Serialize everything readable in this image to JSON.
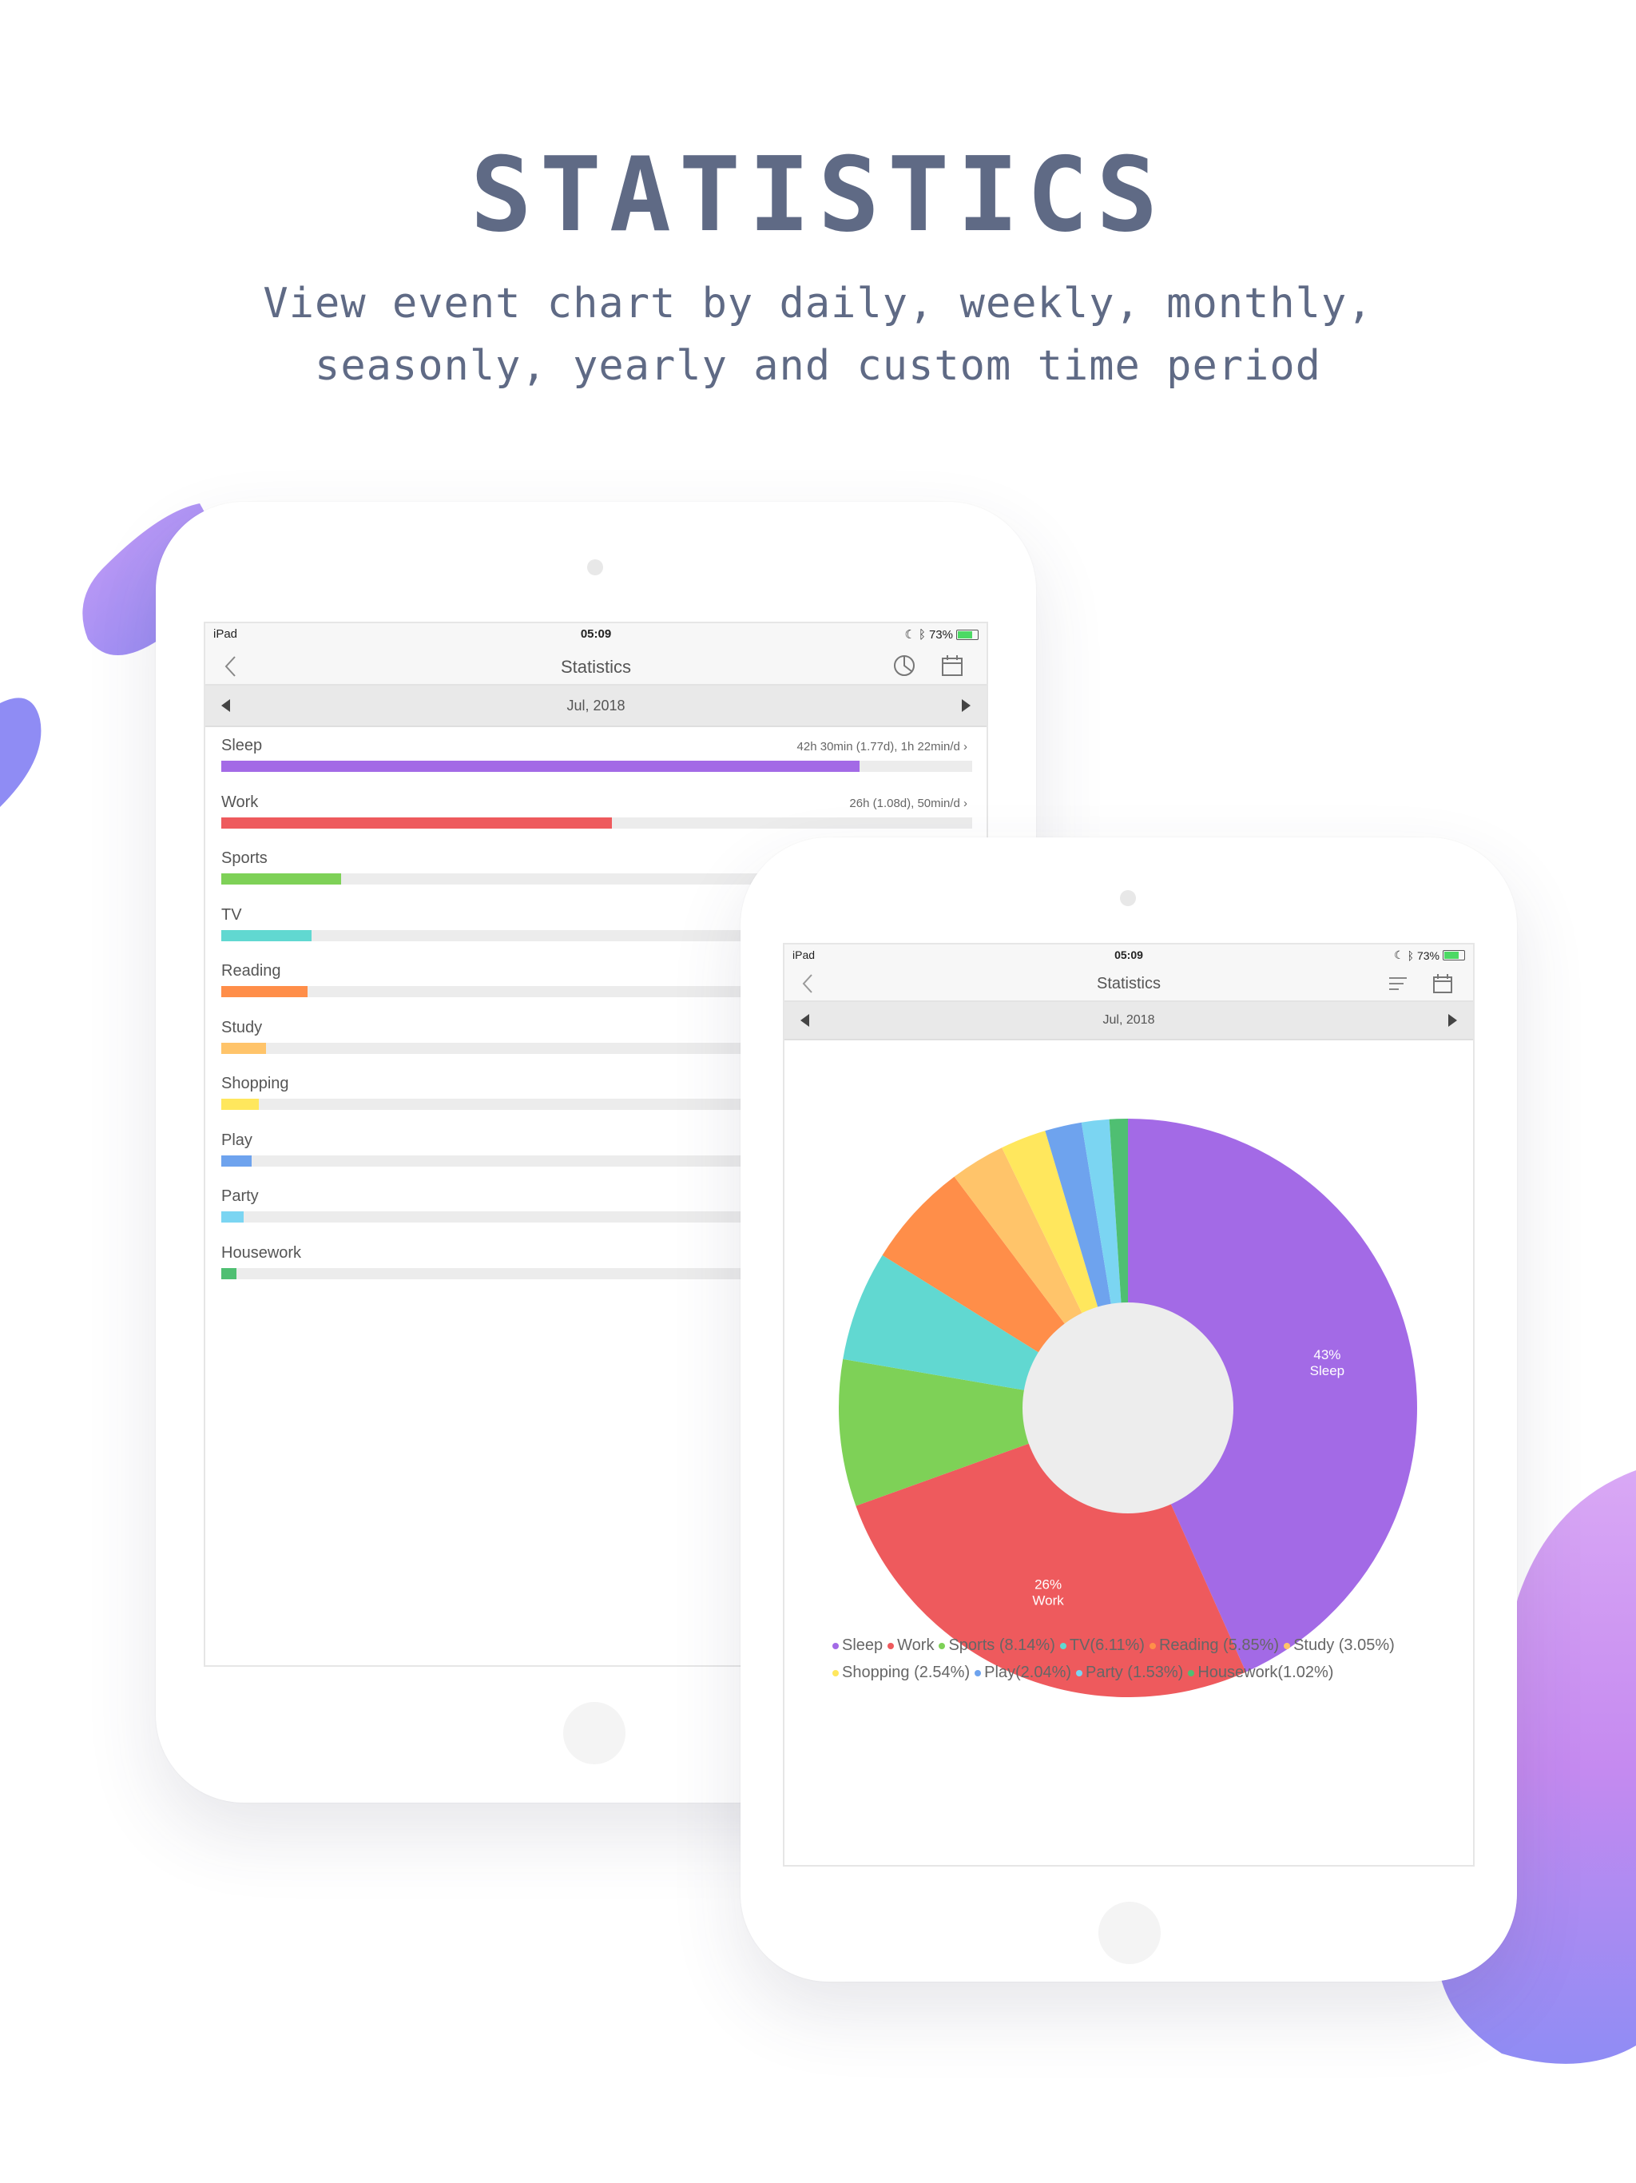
{
  "header": {
    "title": "STATISTICS",
    "subtitle_line1": "View event chart by daily, weekly, monthly,",
    "subtitle_line2": "seasonly, yearly and custom time period"
  },
  "ipad_list": {
    "status": {
      "device": "iPad",
      "time": "05:09",
      "battery": "73%"
    },
    "nav_title": "Statistics",
    "period": "Jul, 2018",
    "rows": [
      {
        "label": "Sleep",
        "meta": "42h 30min (1.77d), 1h 22min/d",
        "fraction": 0.85,
        "color": "#a36ae6"
      },
      {
        "label": "Work",
        "meta": "26h  (1.08d), 50min/d",
        "fraction": 0.52,
        "color": "#ee5a5d"
      },
      {
        "label": "Sports",
        "meta": "",
        "fraction": 0.16,
        "color": "#7ed157"
      },
      {
        "label": "TV",
        "meta": "",
        "fraction": 0.12,
        "color": "#61d8d1"
      },
      {
        "label": "Reading",
        "meta": "",
        "fraction": 0.115,
        "color": "#ff8e49"
      },
      {
        "label": "Study",
        "meta": "",
        "fraction": 0.06,
        "color": "#ffc46a"
      },
      {
        "label": "Shopping",
        "meta": "",
        "fraction": 0.05,
        "color": "#ffe75d"
      },
      {
        "label": "Play",
        "meta": "",
        "fraction": 0.04,
        "color": "#6ea3ee"
      },
      {
        "label": "Party",
        "meta": "",
        "fraction": 0.03,
        "color": "#7bd5f2"
      },
      {
        "label": "Housework",
        "meta": "",
        "fraction": 0.02,
        "color": "#4fbf72"
      }
    ]
  },
  "ipad_chart": {
    "status": {
      "device": "iPad",
      "time": "05:09",
      "battery": "73%"
    },
    "nav_title": "Statistics",
    "period": "Jul, 2018",
    "legend": [
      {
        "text": "Sleep",
        "color": "#a36ae6"
      },
      {
        "text": "Work",
        "color": "#ee5a5d"
      },
      {
        "text": "Sports (8.14%)",
        "color": "#7ed157"
      },
      {
        "text": "TV(6.11%)",
        "color": "#61d8d1"
      },
      {
        "text": "Reading (5.85%)",
        "color": "#ff8e49"
      },
      {
        "text": "Study (3.05%)",
        "color": "#ffc46a"
      },
      {
        "text": "Shopping (2.54%)",
        "color": "#ffe75d"
      },
      {
        "text": "Play(2.04%)",
        "color": "#6ea3ee"
      },
      {
        "text": "Party (1.53%)",
        "color": "#7bd5f2"
      },
      {
        "text": "Housework(1.02%)",
        "color": "#4fbf72"
      }
    ]
  },
  "chart_data": {
    "type": "pie",
    "categories": [
      "Sleep",
      "Work",
      "Sports",
      "TV",
      "Reading",
      "Study",
      "Shopping",
      "Play",
      "Party",
      "Housework"
    ],
    "values": [
      43.0,
      26.0,
      8.14,
      6.11,
      5.85,
      3.05,
      2.54,
      2.04,
      1.53,
      1.02
    ],
    "colors": [
      "#a36ae6",
      "#ee5a5d",
      "#7ed157",
      "#61d8d1",
      "#ff8e49",
      "#ffc46a",
      "#ffe75d",
      "#6ea3ee",
      "#7bd5f2",
      "#4fbf72"
    ],
    "slice_labels": [
      {
        "category": "Sleep",
        "percent": "43%",
        "name": "Sleep"
      },
      {
        "category": "Work",
        "percent": "26%",
        "name": "Work"
      }
    ],
    "donut": true,
    "legend_position": "bottom"
  }
}
